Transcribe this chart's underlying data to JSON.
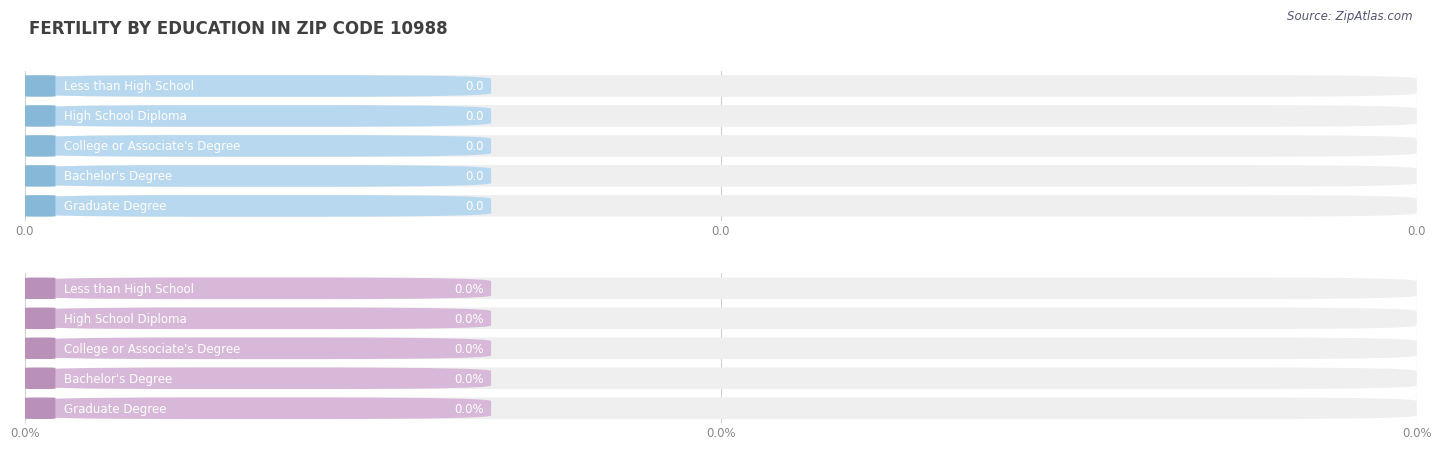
{
  "title": "FERTILITY BY EDUCATION IN ZIP CODE 10988",
  "source": "Source: ZipAtlas.com",
  "categories": [
    "Less than High School",
    "High School Diploma",
    "College or Associate's Degree",
    "Bachelor's Degree",
    "Graduate Degree"
  ],
  "top_values": [
    0.0,
    0.0,
    0.0,
    0.0,
    0.0
  ],
  "bottom_values": [
    0.0,
    0.0,
    0.0,
    0.0,
    0.0
  ],
  "top_bar_fill": "#b8d8f0",
  "top_bar_left": "#88b8d8",
  "bottom_bar_fill": "#d8b8d8",
  "bottom_bar_left": "#b890b8",
  "bar_bg_color": "#efefef",
  "top_xtick_labels": [
    "0.0",
    "0.0",
    "0.0"
  ],
  "bottom_xtick_labels": [
    "0.0%",
    "0.0%",
    "0.0%"
  ],
  "background_color": "#ffffff",
  "title_fontsize": 12,
  "label_fontsize": 8.5,
  "value_fontsize": 8.5,
  "tick_fontsize": 8.5,
  "source_fontsize": 8.5
}
